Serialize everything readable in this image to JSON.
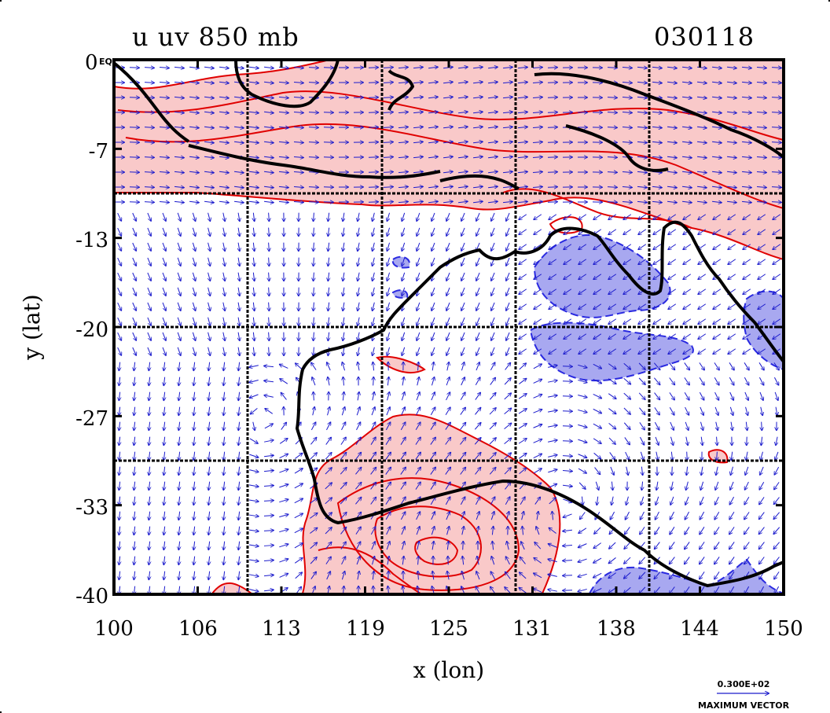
{
  "title_left": "u uv 850 mb",
  "title_right": "030118",
  "corner_label": "0",
  "corner_label_small": "EQ",
  "xlabel": "x (lon)",
  "ylabel": "y (lat)",
  "x_ticks": [
    "100",
    "106",
    "113",
    "119",
    "125",
    "131",
    "138",
    "144",
    "150"
  ],
  "y_ticks": [
    "0",
    "-7",
    "-13",
    "-20",
    "-27",
    "-33",
    "-40"
  ],
  "vector_ref_value": "0.300E+02",
  "vector_ref_label": "MAXIMUM VECTOR",
  "colors": {
    "positive_fill": "#f9c9c9",
    "positive_line": "#e00000",
    "negative_fill": "#a8a8f0",
    "negative_line": "#2a2ae0",
    "vectors": "#1a1acc",
    "coast": "#000000"
  },
  "chart_data": {
    "type": "map",
    "variable": "u uv 850 mb",
    "date": "030118",
    "xlim": [
      100,
      150
    ],
    "ylim": [
      -40,
      0
    ],
    "x_gridlines": [
      110,
      120,
      130,
      140
    ],
    "y_gridlines": [
      -10,
      -20,
      -30
    ],
    "shading": [
      {
        "sign": "positive",
        "region": "equatorial band 0 to -10 lat, 100-150 lon"
      },
      {
        "sign": "positive",
        "region": "southern ocean / SW Australia 115-137 lon, -28 to -40 lat"
      },
      {
        "sign": "negative",
        "region": "northern Australia 131-142 lon, -13 to -24 lat"
      },
      {
        "sign": "negative",
        "region": "Coral Sea coast 147-150 lon, -17 to -23 lat"
      },
      {
        "sign": "negative",
        "region": "southeast 136-147 lon, -38 to -40 lat"
      }
    ]
  }
}
